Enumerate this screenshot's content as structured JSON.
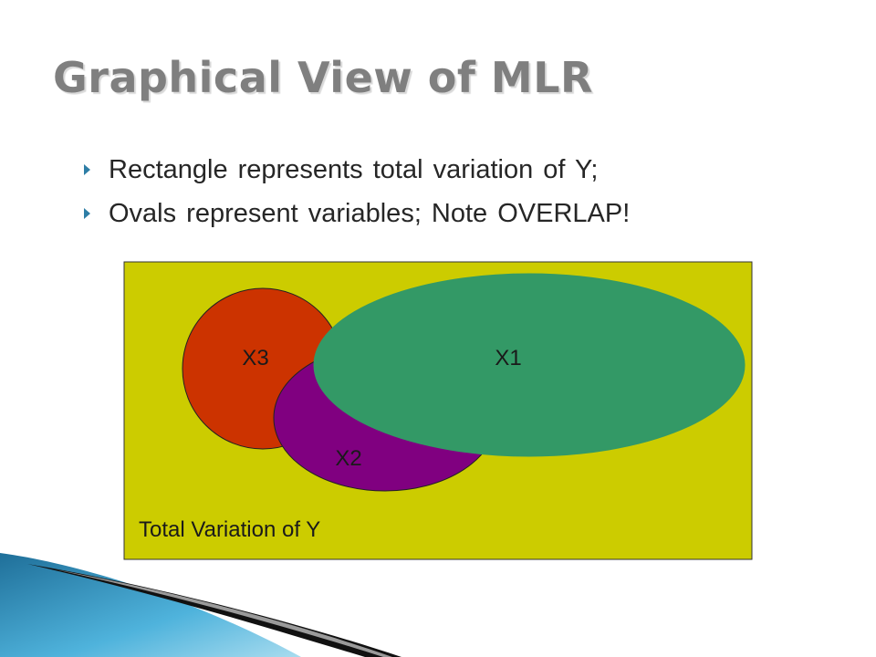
{
  "title": "Graphical View of MLR",
  "bullets": [
    "Rectangle represents total variation of Y;",
    "Ovals represent variables; Note OVERLAP!"
  ],
  "diagram": {
    "rectangle_label": "Total Variation of Y",
    "ovals": {
      "x3": {
        "label": "X3",
        "color": "#cc3300"
      },
      "x2": {
        "label": "X2",
        "color": "#800080"
      },
      "x1": {
        "label": "X1",
        "color": "#339966"
      }
    },
    "rectangle_color": "#cccc00",
    "accent_color": "#2e7ea6"
  }
}
